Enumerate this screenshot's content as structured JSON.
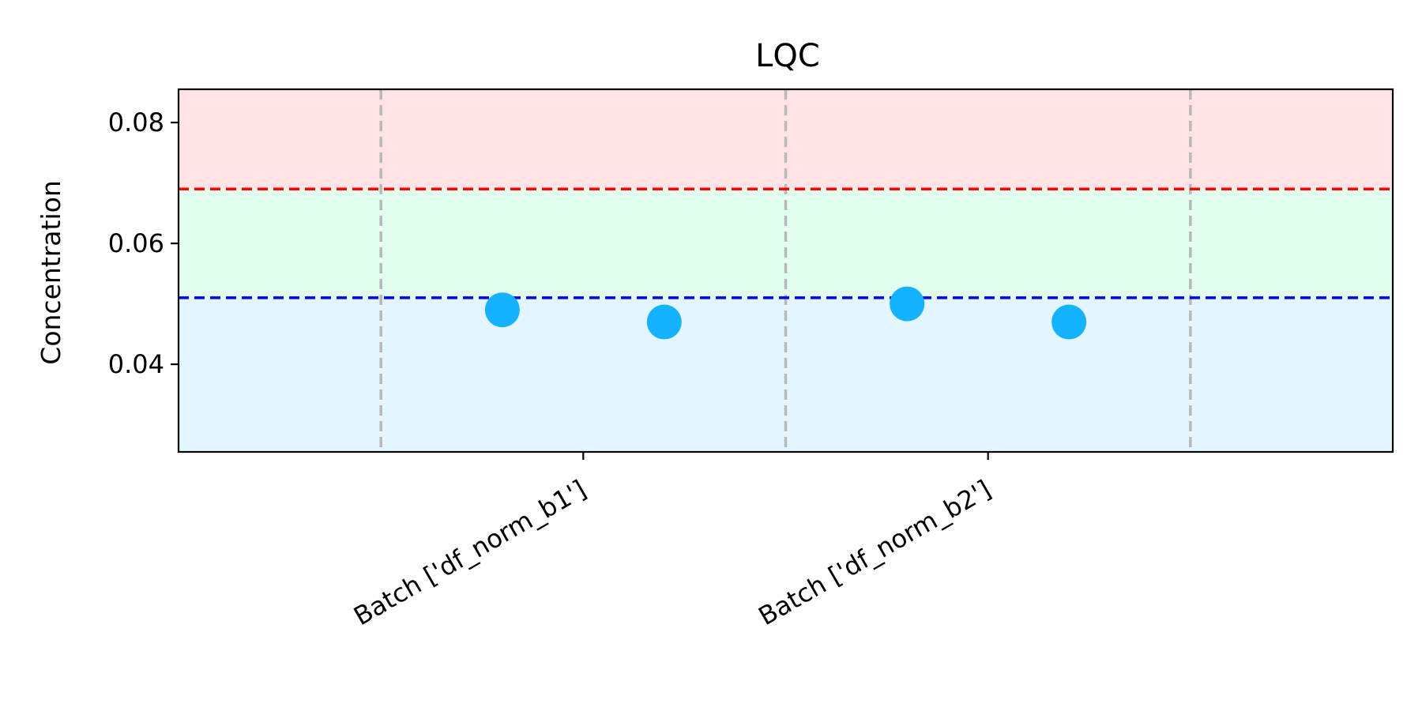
{
  "chart_data": {
    "type": "scatter",
    "title": "LQC",
    "xlabel": "",
    "ylabel": "Concentration",
    "categories": [
      "Batch ['df_norm_b1']",
      "Batch ['df_norm_b2']"
    ],
    "xlim": [
      -1.0,
      2.0
    ],
    "ylim": [
      0.0255,
      0.0855
    ],
    "y_ticks": [
      0.04,
      0.06,
      0.08
    ],
    "y_tick_labels": [
      "0.04",
      "0.06",
      "0.08"
    ],
    "grid": false,
    "batch_boundaries": [
      -0.5,
      0.5,
      1.5
    ],
    "series": [
      {
        "color": "#15b2ff",
        "points": [
          {
            "x": -0.2,
            "y": 0.049
          },
          {
            "x": 0.2,
            "y": 0.047
          },
          {
            "x": 0.8,
            "y": 0.05
          },
          {
            "x": 1.2,
            "y": 0.047
          }
        ]
      }
    ],
    "reference_lines": [
      {
        "y": 0.069,
        "color": "#ff0000",
        "style": "dashed"
      },
      {
        "y": 0.051,
        "color": "#0000ff",
        "style": "dashed"
      }
    ],
    "bands": [
      {
        "from": 0.069,
        "to": 0.0855,
        "color": "#ffe3e5"
      },
      {
        "from": 0.051,
        "to": 0.069,
        "color": "#e3fff0"
      },
      {
        "from": 0.0255,
        "to": 0.051,
        "color": "#e3f6ff"
      }
    ],
    "x_tick_rotation": 30
  }
}
